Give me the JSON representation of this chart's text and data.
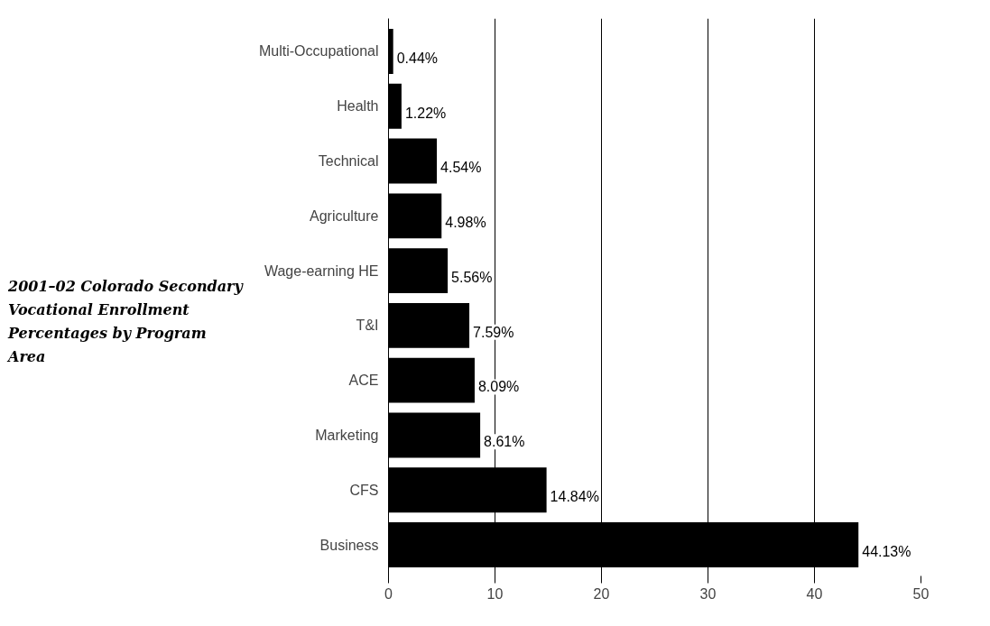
{
  "chart_data": {
    "type": "bar",
    "orientation": "horizontal",
    "title": "2001–02 Colorado Secondary Vocational Enrollment Percentages by Program Area",
    "categories": [
      "Multi-Occupational",
      "Health",
      "Technical",
      "Agriculture",
      "Wage-earning HE",
      "T&I",
      "ACE",
      "Marketing",
      "CFS",
      "Business"
    ],
    "values": [
      0.44,
      1.22,
      4.54,
      4.98,
      5.56,
      7.59,
      8.09,
      8.61,
      14.84,
      44.13
    ],
    "value_labels": [
      "0.44%",
      "1.22%",
      "4.54%",
      "4.98%",
      "5.56%",
      "7.59%",
      "8.09%",
      "8.61%",
      "14.84%",
      "44.13%"
    ],
    "color": "#000000",
    "xlim": [
      0,
      50
    ],
    "xticks": [
      0,
      10,
      20,
      30,
      40,
      50
    ],
    "grid": "x"
  }
}
